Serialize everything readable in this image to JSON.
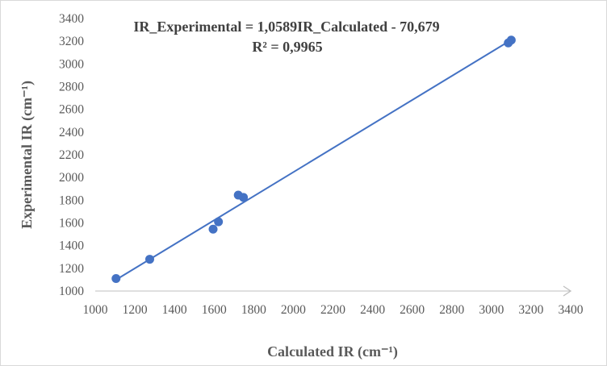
{
  "chart_data": {
    "type": "scatter",
    "xlabel": "Calculated  IR (cm⁻¹)",
    "ylabel": "Experimental IR (cm⁻¹)",
    "xlim": [
      1000,
      3400
    ],
    "ylim": [
      1000,
      3400
    ],
    "x_ticks": [
      1000,
      1200,
      1400,
      1600,
      1800,
      2000,
      2200,
      2400,
      2600,
      2800,
      3000,
      3200,
      3400
    ],
    "y_ticks": [
      1000,
      1200,
      1400,
      1600,
      1800,
      2000,
      2200,
      2400,
      2600,
      2800,
      3000,
      3200,
      3400
    ],
    "grid": false,
    "point_color": "#4472c4",
    "trendline_color": "#4472c4",
    "series": [
      {
        "x": [
          1105,
          1275,
          1595,
          1622,
          1722,
          1748,
          3085,
          3100
        ],
        "y": [
          1110,
          1280,
          1545,
          1610,
          1845,
          1825,
          3185,
          3210
        ]
      }
    ],
    "trendline": {
      "slope": 1.0589,
      "intercept": -70.679,
      "x_range": [
        1105,
        3100
      ]
    },
    "annotations": {
      "equation": "IR_Experimental = 1,0589IR_Calculated - 70,679",
      "r_squared": "R² = 0,9965"
    }
  }
}
